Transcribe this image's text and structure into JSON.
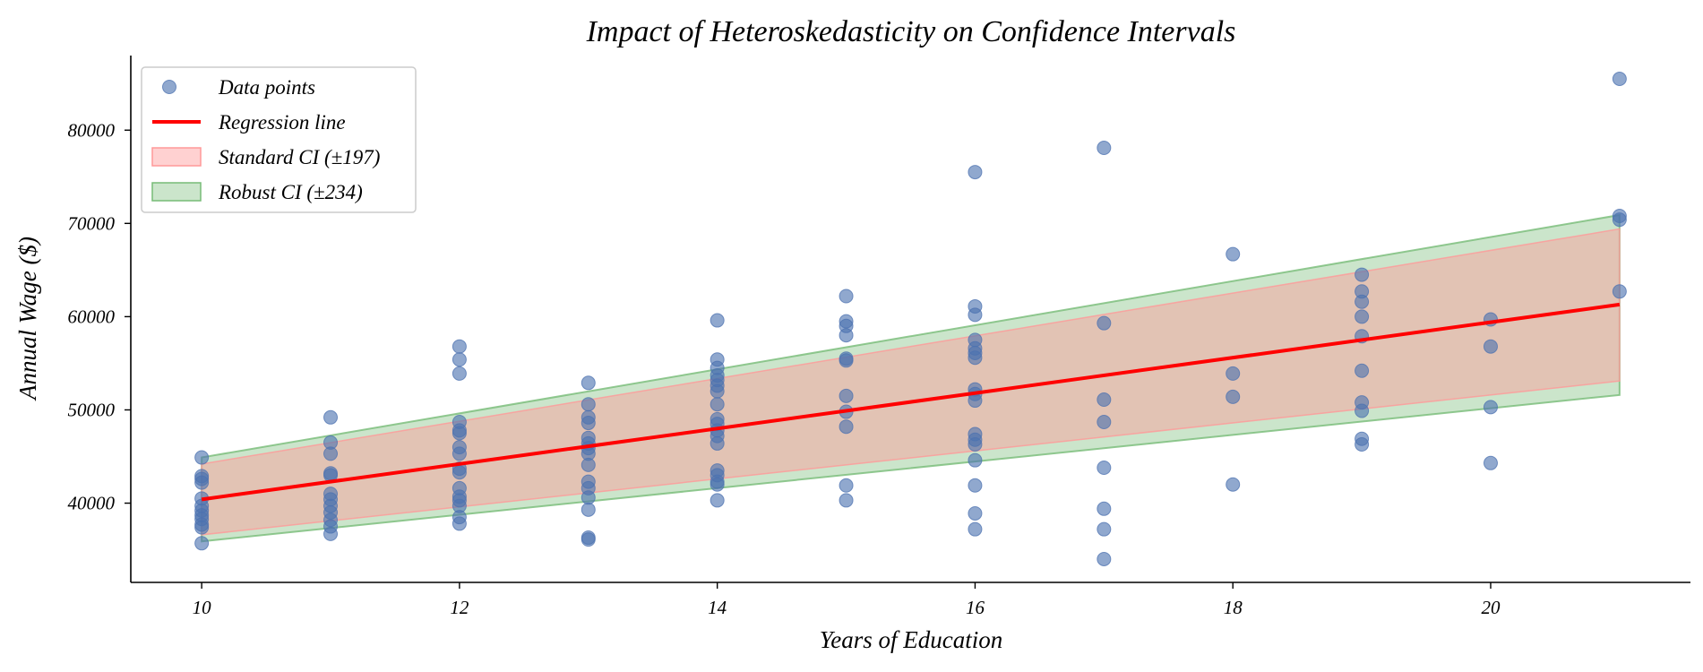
{
  "chart_data": {
    "type": "scatter",
    "title": "Impact of Heteroskedasticity on Confidence Intervals",
    "xlabel": "Years of Education",
    "ylabel": "Annual Wage ($)",
    "xlim": [
      9.45,
      21.55
    ],
    "ylim": [
      31500,
      88000
    ],
    "xticks": [
      10,
      12,
      14,
      16,
      18,
      20
    ],
    "yticks": [
      40000,
      50000,
      60000,
      70000,
      80000
    ],
    "grid": false,
    "legend_position": "top-left",
    "colors": {
      "points": "#4c72b0",
      "regression": "#ff0000",
      "standard_ci": "#ff9999",
      "robust_ci": "#77bb77"
    },
    "legend": [
      {
        "label": "Data points",
        "kind": "marker"
      },
      {
        "label": "Regression line",
        "kind": "line"
      },
      {
        "label": "Standard CI (±197)",
        "kind": "patch-standard"
      },
      {
        "label": "Robust CI (±234)",
        "kind": "patch-robust"
      }
    ],
    "regression": {
      "x": [
        10,
        21
      ],
      "y": [
        40400,
        61300
      ]
    },
    "standard_ci": {
      "x": [
        10,
        21
      ],
      "lower": [
        36600,
        53100
      ],
      "upper": [
        44200,
        69400
      ]
    },
    "robust_ci": {
      "x": [
        10,
        21
      ],
      "lower": [
        35900,
        51600
      ],
      "upper": [
        44900,
        70900
      ]
    },
    "series": [
      {
        "name": "Data points",
        "points": [
          [
            10,
            44900
          ],
          [
            10,
            42900
          ],
          [
            10,
            42600
          ],
          [
            10,
            42200
          ],
          [
            10,
            40500
          ],
          [
            10,
            39700
          ],
          [
            10,
            39200
          ],
          [
            10,
            38700
          ],
          [
            10,
            38300
          ],
          [
            10,
            37700
          ],
          [
            10,
            37400
          ],
          [
            10,
            35700
          ],
          [
            11,
            49200
          ],
          [
            11,
            46500
          ],
          [
            11,
            45300
          ],
          [
            11,
            43200
          ],
          [
            11,
            43000
          ],
          [
            11,
            41000
          ],
          [
            11,
            40400
          ],
          [
            11,
            39700
          ],
          [
            11,
            39000
          ],
          [
            11,
            38200
          ],
          [
            11,
            37500
          ],
          [
            11,
            36700
          ],
          [
            12,
            56800
          ],
          [
            12,
            55400
          ],
          [
            12,
            53900
          ],
          [
            12,
            48700
          ],
          [
            12,
            47800
          ],
          [
            12,
            47500
          ],
          [
            12,
            46000
          ],
          [
            12,
            45300
          ],
          [
            12,
            43700
          ],
          [
            12,
            43300
          ],
          [
            12,
            41600
          ],
          [
            12,
            40700
          ],
          [
            12,
            40300
          ],
          [
            12,
            39700
          ],
          [
            12,
            38500
          ],
          [
            12,
            37800
          ],
          [
            13,
            52900
          ],
          [
            13,
            50600
          ],
          [
            13,
            49200
          ],
          [
            13,
            48600
          ],
          [
            13,
            47000
          ],
          [
            13,
            46400
          ],
          [
            13,
            45900
          ],
          [
            13,
            45300
          ],
          [
            13,
            44100
          ],
          [
            13,
            42300
          ],
          [
            13,
            41600
          ],
          [
            13,
            40600
          ],
          [
            13,
            39300
          ],
          [
            13,
            36300
          ],
          [
            13,
            36100
          ],
          [
            14,
            59600
          ],
          [
            14,
            55400
          ],
          [
            14,
            54500
          ],
          [
            14,
            53700
          ],
          [
            14,
            53200
          ],
          [
            14,
            52600
          ],
          [
            14,
            52000
          ],
          [
            14,
            50600
          ],
          [
            14,
            49000
          ],
          [
            14,
            48500
          ],
          [
            14,
            47800
          ],
          [
            14,
            47200
          ],
          [
            14,
            46400
          ],
          [
            14,
            43500
          ],
          [
            14,
            43000
          ],
          [
            14,
            42300
          ],
          [
            14,
            42000
          ],
          [
            14,
            40300
          ],
          [
            15,
            62200
          ],
          [
            15,
            59500
          ],
          [
            15,
            59000
          ],
          [
            15,
            58000
          ],
          [
            15,
            55500
          ],
          [
            15,
            55300
          ],
          [
            15,
            51500
          ],
          [
            15,
            49800
          ],
          [
            15,
            48200
          ],
          [
            15,
            41900
          ],
          [
            15,
            40300
          ],
          [
            16,
            75500
          ],
          [
            16,
            61100
          ],
          [
            16,
            60200
          ],
          [
            16,
            57500
          ],
          [
            16,
            56600
          ],
          [
            16,
            56100
          ],
          [
            16,
            55600
          ],
          [
            16,
            52200
          ],
          [
            16,
            51700
          ],
          [
            16,
            51000
          ],
          [
            16,
            47400
          ],
          [
            16,
            46800
          ],
          [
            16,
            46300
          ],
          [
            16,
            44600
          ],
          [
            16,
            41900
          ],
          [
            16,
            38900
          ],
          [
            16,
            37200
          ],
          [
            17,
            78100
          ],
          [
            17,
            59300
          ],
          [
            17,
            51100
          ],
          [
            17,
            48700
          ],
          [
            17,
            43800
          ],
          [
            17,
            39400
          ],
          [
            17,
            37200
          ],
          [
            17,
            34000
          ],
          [
            18,
            66700
          ],
          [
            18,
            53900
          ],
          [
            18,
            51400
          ],
          [
            18,
            42000
          ],
          [
            19,
            64500
          ],
          [
            19,
            62700
          ],
          [
            19,
            61600
          ],
          [
            19,
            60000
          ],
          [
            19,
            57900
          ],
          [
            19,
            54200
          ],
          [
            19,
            50800
          ],
          [
            19,
            49900
          ],
          [
            19,
            46900
          ],
          [
            19,
            46300
          ],
          [
            20,
            59700
          ],
          [
            20,
            56800
          ],
          [
            20,
            50300
          ],
          [
            20,
            44300
          ],
          [
            21,
            85500
          ],
          [
            21,
            70800
          ],
          [
            21,
            70400
          ],
          [
            21,
            62700
          ]
        ]
      }
    ]
  }
}
